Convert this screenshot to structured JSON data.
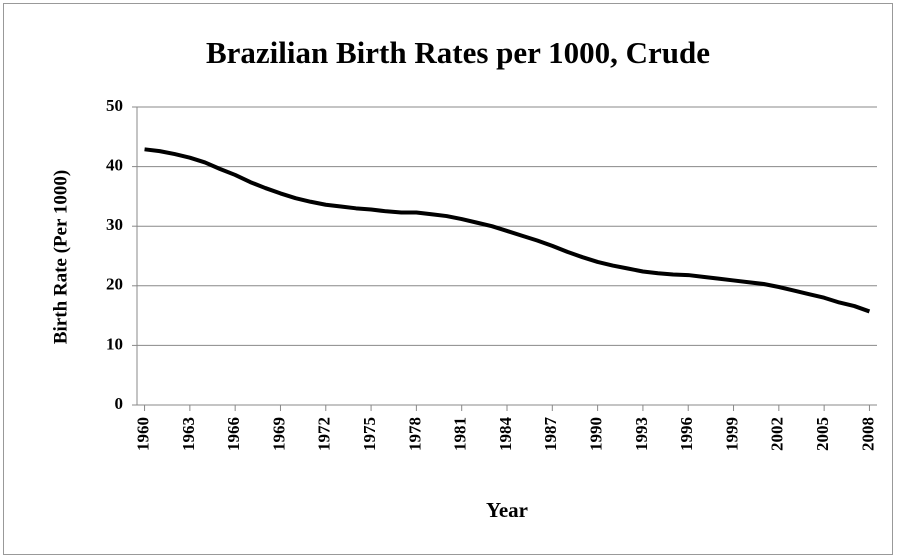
{
  "chart_data": {
    "type": "line",
    "title": "Brazilian Birth Rates per 1000, Crude",
    "x_label": "Year",
    "y_label": "Birth Rate (Per 1000)",
    "x": [
      1960,
      1961,
      1962,
      1963,
      1964,
      1965,
      1966,
      1967,
      1968,
      1969,
      1970,
      1971,
      1972,
      1973,
      1974,
      1975,
      1976,
      1977,
      1978,
      1979,
      1980,
      1981,
      1982,
      1983,
      1984,
      1985,
      1986,
      1987,
      1988,
      1989,
      1990,
      1991,
      1992,
      1993,
      1994,
      1995,
      1996,
      1997,
      1998,
      1999,
      2000,
      2001,
      2002,
      2003,
      2004,
      2005,
      2006,
      2007,
      2008
    ],
    "series": [
      {
        "name": "Birth Rate",
        "color": "#000000",
        "values": [
          42.9,
          42.6,
          42.1,
          41.5,
          40.7,
          39.6,
          38.6,
          37.4,
          36.4,
          35.5,
          34.7,
          34.1,
          33.6,
          33.3,
          33.0,
          32.8,
          32.5,
          32.3,
          32.3,
          32.0,
          31.7,
          31.2,
          30.6,
          30.0,
          29.2,
          28.4,
          27.6,
          26.7,
          25.7,
          24.8,
          24.0,
          23.4,
          22.9,
          22.4,
          22.1,
          21.9,
          21.8,
          21.5,
          21.2,
          20.9,
          20.6,
          20.3,
          19.8,
          19.2,
          18.6,
          18.0,
          17.2,
          16.6,
          15.7
        ]
      }
    ],
    "xlim": [
      1959.5,
      2008.5
    ],
    "xticks": [
      1960,
      1963,
      1966,
      1969,
      1972,
      1975,
      1978,
      1981,
      1984,
      1987,
      1990,
      1993,
      1996,
      1999,
      2002,
      2005,
      2008
    ],
    "ylim": [
      0,
      50
    ],
    "yticks": [
      0,
      10,
      20,
      30,
      40,
      50
    ],
    "grid": true
  }
}
